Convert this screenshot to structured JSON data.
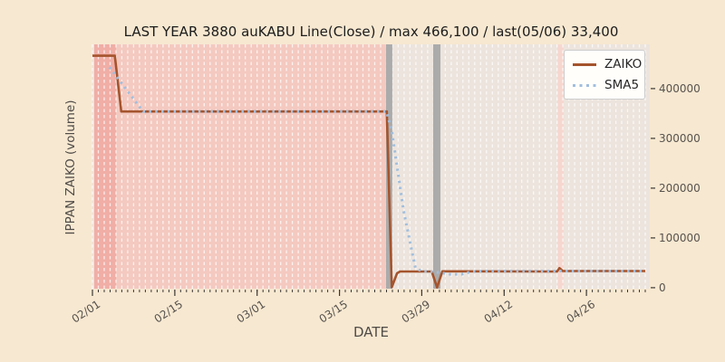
{
  "colors": {
    "figure_bg": "#f7e8d1",
    "plot_bg": "#ece4dd",
    "grid_line": "rgba(255,255,255,0.75)",
    "tick_color": "#3b3733",
    "title_color": "#1c1c1c",
    "zaiko_line": "#a5542d",
    "sma5_line": "#a1bedd",
    "highlight_dark_pink": "#f0aea6",
    "highlight_pink": "#f4c9c0",
    "highlight_pink_light": "#f6d7d0",
    "event_bar_gray": "#ababab"
  },
  "chart_data": {
    "type": "line",
    "title": "LAST YEAR 3880 auKABU Line(Close) / max 466,100 / last(05/06) 33,400",
    "xlabel": "DATE",
    "ylabel": "IPPAN ZAIKO (volume)",
    "x_unit": "days since 02/01",
    "x_range_days": [
      0,
      94
    ],
    "ylim": [
      -2000,
      489000
    ],
    "y_ticks": [
      0,
      100000,
      200000,
      300000,
      400000
    ],
    "x_ticks": [
      {
        "day": 0,
        "label": "02/01"
      },
      {
        "day": 14,
        "label": "02/15"
      },
      {
        "day": 28,
        "label": "03/01"
      },
      {
        "day": 42,
        "label": "03/15"
      },
      {
        "day": 56,
        "label": "03/29"
      },
      {
        "day": 70,
        "label": "04/12"
      },
      {
        "day": 84,
        "label": "04/26"
      }
    ],
    "minor_tick_every_days": 1,
    "grid": "vertical-daily-dashed-white",
    "legend_position": "upper-right",
    "max_value": 466100,
    "last_date": "05/06",
    "last_value": 33400,
    "series": [
      {
        "name": "ZAIKO",
        "color": "#a5542d",
        "line_style": "solid",
        "points_day_value": [
          [
            0,
            466100
          ],
          [
            3.8,
            466100
          ],
          [
            4.9,
            354000
          ],
          [
            50.05,
            354000
          ],
          [
            50.9,
            1000
          ],
          [
            51.8,
            29000
          ],
          [
            52.3,
            32500
          ],
          [
            57.7,
            32500
          ],
          [
            58.6,
            500
          ],
          [
            59.5,
            33000
          ],
          [
            79.0,
            32500
          ],
          [
            79.4,
            39500
          ],
          [
            80.0,
            33400
          ],
          [
            94,
            33400
          ]
        ]
      },
      {
        "name": "SMA5",
        "color": "#a1bedd",
        "line_style": "dotted",
        "points_day_value": [
          [
            2.9,
            443000
          ],
          [
            8.6,
            354000
          ],
          [
            50.0,
            354000
          ],
          [
            50.9,
            315000
          ],
          [
            52.9,
            155000
          ],
          [
            54.9,
            40000
          ],
          [
            56.0,
            33000
          ],
          [
            57.5,
            32500
          ],
          [
            59.2,
            30000
          ],
          [
            60.8,
            27000
          ],
          [
            62.8,
            27000
          ],
          [
            64.5,
            32500
          ],
          [
            66.5,
            33400
          ],
          [
            94,
            33400
          ]
        ]
      }
    ],
    "regions": [
      {
        "name": "highlight-span-dark-pink",
        "layer": "span",
        "day_start": 0.31,
        "day_end": 4.01,
        "color": "#f0aea6"
      },
      {
        "name": "highlight-span-pink",
        "layer": "span",
        "day_start": 4.01,
        "day_end": 49.93,
        "color": "#f4c9c0"
      },
      {
        "name": "highlight-span-pink-light",
        "layer": "span",
        "day_start": 79.06,
        "day_end": 80.13,
        "color": "#f6d7d0"
      },
      {
        "name": "event-bar-1",
        "layer": "bar",
        "day_start": 49.93,
        "day_end": 51.0,
        "color": "#ababab"
      },
      {
        "name": "event-bar-2",
        "layer": "bar",
        "day_start": 57.94,
        "day_end": 59.17,
        "color": "#ababab"
      }
    ]
  },
  "legend": {
    "items": [
      {
        "label": "ZAIKO",
        "style": "solid"
      },
      {
        "label": "SMA5",
        "style": "dotted"
      }
    ]
  }
}
